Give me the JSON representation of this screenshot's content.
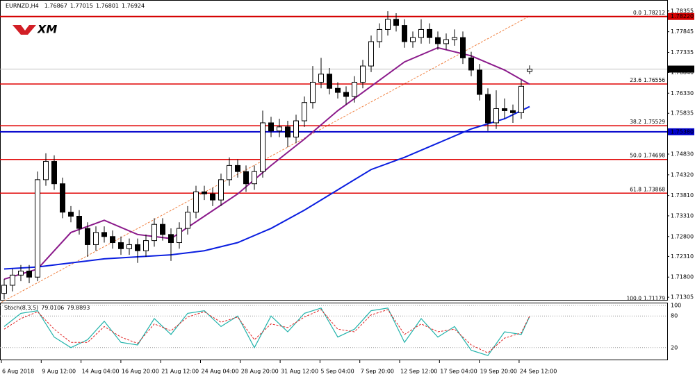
{
  "chart_data": {
    "type": "candlestick",
    "symbol": "EURNZD,H4",
    "logo": "XM",
    "open": [
      1.714,
      1.716,
      1.7185,
      1.7195,
      1.718,
      1.742,
      1.7465,
      1.741,
      1.734,
      1.733,
      1.73,
      1.726,
      1.729,
      1.728,
      1.7265,
      1.725,
      1.726,
      1.7245,
      1.727,
      1.731,
      1.7285,
      1.7265,
      1.73,
      1.734,
      1.739,
      1.7385,
      1.737,
      1.742,
      1.7455,
      1.744,
      1.741,
      1.744,
      1.756,
      1.754,
      1.755,
      1.7525,
      1.7565,
      1.761,
      1.766,
      1.768,
      1.7645,
      1.7635,
      1.7625,
      1.766,
      1.77,
      1.776,
      1.779,
      1.7815,
      1.78,
      1.776,
      1.777,
      1.779,
      1.777,
      1.7755,
      1.7765,
      1.777,
      1.772,
      1.769,
      1.763,
      1.756,
      1.7595,
      1.759,
      1.7585,
      1.76867
    ],
    "high": [
      1.7175,
      1.72,
      1.721,
      1.721,
      1.744,
      1.7485,
      1.748,
      1.7425,
      1.7355,
      1.7345,
      1.7315,
      1.7305,
      1.7305,
      1.7295,
      1.728,
      1.7275,
      1.7275,
      1.7285,
      1.7325,
      1.7325,
      1.73,
      1.7315,
      1.7355,
      1.7405,
      1.7405,
      1.74,
      1.7435,
      1.7475,
      1.747,
      1.7455,
      1.7455,
      1.759,
      1.7575,
      1.757,
      1.7565,
      1.758,
      1.7625,
      1.77,
      1.772,
      1.7695,
      1.766,
      1.765,
      1.7675,
      1.7715,
      1.7775,
      1.7805,
      1.7835,
      1.783,
      1.7815,
      1.7785,
      1.7815,
      1.7805,
      1.7785,
      1.778,
      1.779,
      1.7785,
      1.7735,
      1.7705,
      1.7645,
      1.764,
      1.762,
      1.7605,
      1.7665,
      1.77015
    ],
    "low": [
      1.7125,
      1.7145,
      1.717,
      1.7165,
      1.717,
      1.7405,
      1.7395,
      1.7325,
      1.7315,
      1.7285,
      1.723,
      1.7245,
      1.7265,
      1.725,
      1.7235,
      1.7235,
      1.7215,
      1.723,
      1.7255,
      1.727,
      1.722,
      1.725,
      1.7285,
      1.7325,
      1.737,
      1.7355,
      1.7355,
      1.7405,
      1.7425,
      1.739,
      1.7395,
      1.7425,
      1.7525,
      1.7525,
      1.75,
      1.751,
      1.755,
      1.7595,
      1.7645,
      1.763,
      1.762,
      1.7605,
      1.761,
      1.7645,
      1.7685,
      1.7745,
      1.7775,
      1.7785,
      1.7745,
      1.7745,
      1.7755,
      1.7755,
      1.774,
      1.774,
      1.775,
      1.7705,
      1.7675,
      1.7615,
      1.754,
      1.7545,
      1.757,
      1.756,
      1.757,
      1.76801
    ],
    "close": [
      1.716,
      1.7185,
      1.7195,
      1.718,
      1.742,
      1.7465,
      1.741,
      1.734,
      1.733,
      1.73,
      1.726,
      1.729,
      1.728,
      1.7265,
      1.725,
      1.726,
      1.7245,
      1.727,
      1.731,
      1.7285,
      1.7265,
      1.73,
      1.734,
      1.739,
      1.7385,
      1.737,
      1.742,
      1.7455,
      1.744,
      1.741,
      1.744,
      1.756,
      1.754,
      1.755,
      1.7525,
      1.7565,
      1.761,
      1.766,
      1.768,
      1.7645,
      1.7635,
      1.7625,
      1.766,
      1.77,
      1.776,
      1.779,
      1.7815,
      1.78,
      1.776,
      1.777,
      1.779,
      1.777,
      1.7755,
      1.7765,
      1.777,
      1.772,
      1.769,
      1.763,
      1.756,
      1.7595,
      1.759,
      1.7585,
      1.765,
      1.76924
    ],
    "ylim": [
      1.7124,
      1.7854
    ],
    "yticks": [
      1.78355,
      1.77845,
      1.77335,
      {
        "value": 1.7684,
        "label": "1.76840"
      },
      {
        "value": 1.7633,
        "label": "1.76330"
      },
      1.75835,
      {
        "value": 1.7483,
        "label": "1.74830"
      },
      {
        "value": 1.7432,
        "label": "1.74320"
      },
      {
        "value": 1.7381,
        "label": "1.73810"
      },
      {
        "value": 1.7331,
        "label": "1.73310"
      },
      {
        "value": 1.728,
        "label": "1.72800"
      },
      {
        "value": 1.7231,
        "label": "1.72310"
      },
      {
        "value": 1.718,
        "label": "1.71800"
      },
      1.71305
    ],
    "levels": [
      {
        "value": 1.7822,
        "label": "1.78220",
        "color": "#d40000"
      },
      {
        "value": 1.7538,
        "label": "1.75380",
        "color": "#0000cc"
      }
    ],
    "fibo": {
      "color": "#e00000",
      "levels": [
        {
          "name": "0.0",
          "price": 1.78212
        },
        {
          "name": "23.6",
          "price": 1.76556
        },
        {
          "name": "38.2",
          "price": 1.75529
        },
        {
          "name": "50.0",
          "price": 1.74698
        },
        {
          "name": "61.8",
          "price": 1.73868
        },
        {
          "name": "100.0",
          "price": 1.71179
        }
      ]
    },
    "ma": [
      {
        "color": "#8b1a8b",
        "x": [
          0,
          4,
          8,
          12,
          16,
          20,
          24,
          28,
          32,
          36,
          40,
          44,
          48,
          52,
          56,
          60,
          63
        ],
        "values": [
          1.7175,
          1.72,
          1.729,
          1.732,
          1.7285,
          1.7275,
          1.733,
          1.7385,
          1.7455,
          1.752,
          1.759,
          1.765,
          1.771,
          1.7745,
          1.7725,
          1.769,
          1.7655
        ]
      },
      {
        "color": "#0a1ee0",
        "x": [
          0,
          4,
          8,
          12,
          16,
          20,
          24,
          28,
          32,
          36,
          40,
          44,
          48,
          52,
          56,
          60,
          63
        ],
        "values": [
          1.72,
          1.7205,
          1.7215,
          1.7225,
          1.723,
          1.7235,
          1.7245,
          1.7265,
          1.73,
          1.7345,
          1.7395,
          1.7445,
          1.7475,
          1.751,
          1.7545,
          1.757,
          1.76
        ]
      }
    ],
    "stoch": {
      "title": "Stoch(8,3,5)",
      "ylim": [
        0,
        100
      ],
      "yticks": [
        100,
        80,
        20
      ],
      "main": {
        "color": "#20b2aa",
        "x": [
          0,
          2,
          4,
          6,
          8,
          10,
          12,
          14,
          16,
          18,
          20,
          22,
          24,
          26,
          28,
          30,
          32,
          34,
          36,
          38,
          40,
          42,
          44,
          46,
          48,
          50,
          52,
          54,
          56,
          58,
          60,
          62,
          63
        ],
        "values": [
          60,
          85,
          90,
          40,
          20,
          35,
          70,
          30,
          25,
          75,
          45,
          85,
          90,
          60,
          80,
          20,
          80,
          50,
          85,
          95,
          40,
          55,
          90,
          95,
          30,
          75,
          40,
          60,
          15,
          5,
          50,
          45,
          79.0106
        ]
      },
      "signal": {
        "color": "#e02020",
        "x": [
          0,
          2,
          4,
          6,
          8,
          10,
          12,
          14,
          16,
          18,
          20,
          22,
          24,
          26,
          28,
          30,
          32,
          34,
          36,
          38,
          40,
          42,
          44,
          46,
          48,
          50,
          52,
          54,
          56,
          58,
          60,
          62,
          63
        ],
        "values": [
          55,
          75,
          88,
          55,
          30,
          30,
          60,
          40,
          28,
          65,
          52,
          78,
          88,
          68,
          78,
          35,
          65,
          58,
          78,
          92,
          55,
          50,
          82,
          92,
          45,
          65,
          50,
          55,
          25,
          10,
          38,
          48,
          79.8893
        ]
      }
    },
    "x_labels": [
      "6 Aug 2018",
      "9 Aug 12:00",
      "14 Aug 04:00",
      "16 Aug 20:00",
      "21 Aug 12:00",
      "24 Aug 04:00",
      "28 Aug 20:00",
      "31 Aug 12:00",
      "5 Sep 04:00",
      "7 Sep 20:00",
      "12 Sep 12:00",
      "17 Sep 04:00",
      "19 Sep 20:00",
      "24 Sep 12:00"
    ]
  }
}
